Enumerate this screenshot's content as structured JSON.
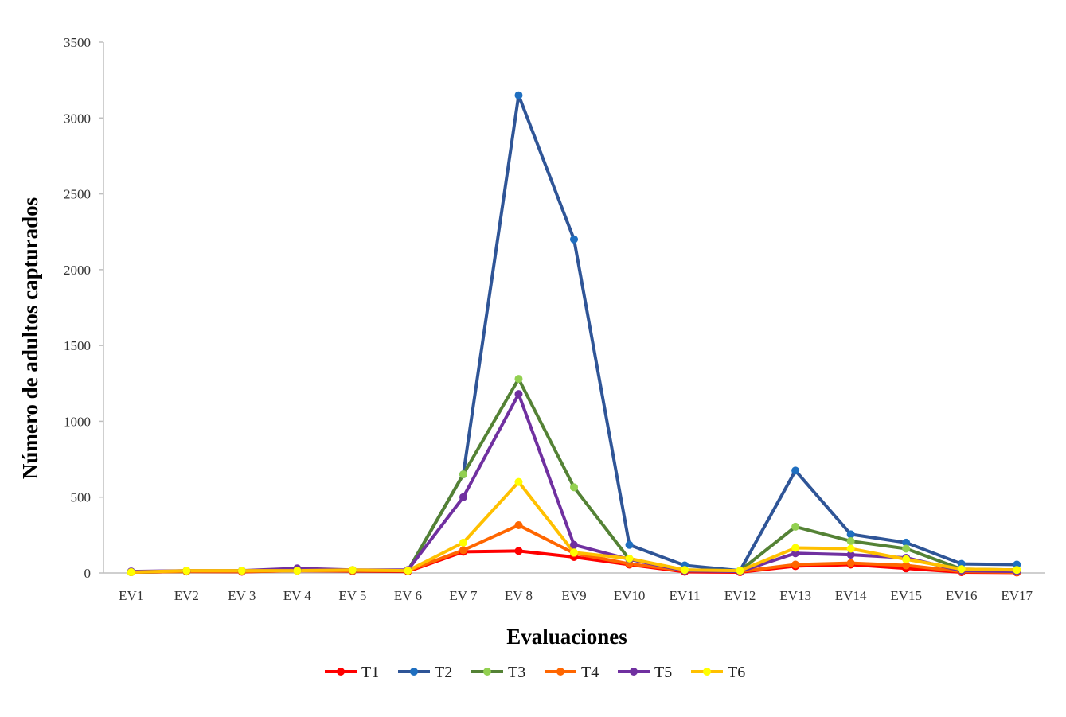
{
  "chart_data": {
    "type": "line",
    "title": "",
    "xlabel": "Evaluaciones",
    "ylabel": "Número de adultos capturados",
    "ylim": [
      0,
      3500
    ],
    "yticks": [
      0,
      500,
      1000,
      1500,
      2000,
      2500,
      3000,
      3500
    ],
    "grid": false,
    "legend_position": "bottom",
    "categories": [
      "EV1",
      "EV2",
      "EV 3",
      "EV 4",
      "EV 5",
      "EV 6",
      "EV 7",
      "EV 8",
      "EV9",
      "EV10",
      "EV11",
      "EV12",
      "EV13",
      "EV14",
      "EV15",
      "EV16",
      "EV17"
    ],
    "series": [
      {
        "name": "T1",
        "line_color": "#ff0000",
        "marker_color": "#ff0000",
        "values": [
          5,
          10,
          8,
          15,
          12,
          10,
          140,
          145,
          105,
          55,
          8,
          5,
          45,
          55,
          30,
          5,
          3
        ]
      },
      {
        "name": "T2",
        "line_color": "#2f5597",
        "marker_color": "#1f6fc0",
        "values": [
          5,
          10,
          15,
          20,
          15,
          15,
          650,
          3150,
          2200,
          185,
          50,
          15,
          675,
          255,
          200,
          60,
          55
        ]
      },
      {
        "name": "T3",
        "line_color": "#548235",
        "marker_color": "#92d050",
        "values": [
          5,
          10,
          10,
          15,
          15,
          15,
          650,
          1280,
          565,
          90,
          20,
          15,
          305,
          210,
          160,
          25,
          20
        ]
      },
      {
        "name": "T4",
        "line_color": "#ff6600",
        "marker_color": "#ff6600",
        "values": [
          5,
          10,
          10,
          15,
          15,
          15,
          150,
          315,
          130,
          60,
          15,
          10,
          55,
          65,
          50,
          10,
          5
        ]
      },
      {
        "name": "T5",
        "line_color": "#7030a0",
        "marker_color": "#7030a0",
        "values": [
          10,
          15,
          15,
          30,
          20,
          20,
          500,
          1180,
          185,
          90,
          15,
          10,
          130,
          120,
          100,
          15,
          10
        ]
      },
      {
        "name": "T6",
        "line_color": "#ffc000",
        "marker_color": "#ffff00",
        "values": [
          5,
          15,
          15,
          15,
          20,
          15,
          200,
          600,
          135,
          95,
          20,
          15,
          165,
          160,
          90,
          25,
          20
        ]
      }
    ]
  }
}
